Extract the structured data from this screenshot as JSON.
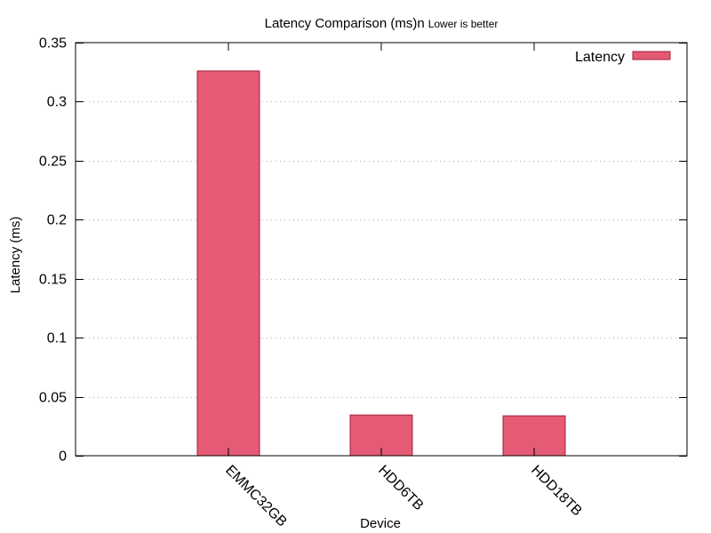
{
  "chart_data": {
    "type": "bar",
    "title": "Latency Comparison (ms)n",
    "subtitle": "Lower is better",
    "xlabel": "Device",
    "ylabel": "Latency (ms)",
    "categories": [
      "EMMC32GB",
      "HDD6TB",
      "HDD18TB"
    ],
    "series": [
      {
        "name": "Latency",
        "values": [
          0.326,
          0.0345,
          0.0338
        ],
        "color": "#e55a75"
      }
    ],
    "ylim": [
      0,
      0.35
    ],
    "yticks": [
      "0",
      "0.05",
      "0.1",
      "0.15",
      "0.2",
      "0.25",
      "0.3",
      "0.35"
    ],
    "grid": true,
    "legend_position": "top-right",
    "bar_border_color": "#a0203d"
  }
}
